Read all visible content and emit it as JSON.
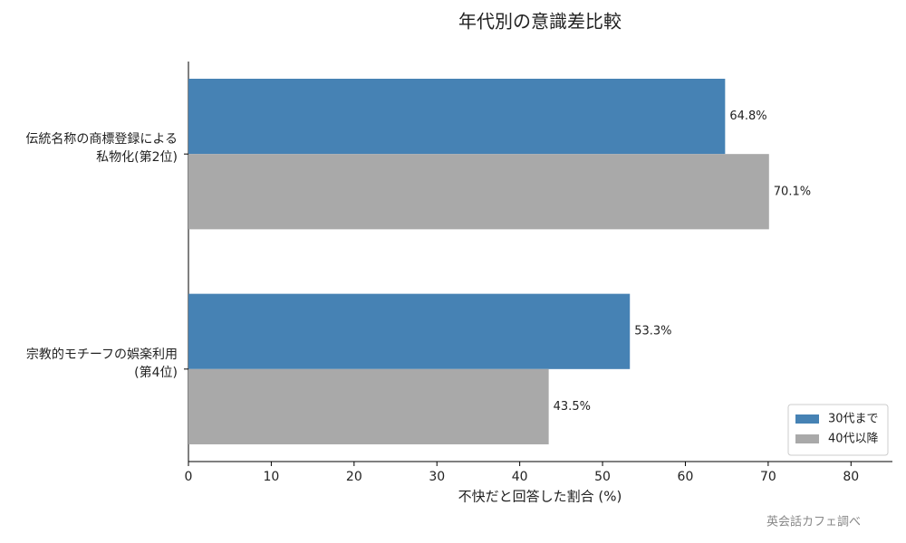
{
  "chart_data": {
    "type": "barh",
    "title": "年代別の意識差比較",
    "categories": [
      [
        "伝統名称の商標登録による",
        "私物化(第2位)"
      ],
      [
        "宗教的モチーフの娯楽利用",
        "(第4位)"
      ]
    ],
    "series": [
      {
        "name": "30代まで",
        "color": "#4682b4",
        "values": [
          64.8,
          53.3
        ],
        "value_labels": [
          "64.8%",
          "53.3%"
        ]
      },
      {
        "name": "40代以降",
        "color": "#a9a9a9",
        "values": [
          70.1,
          43.5
        ],
        "value_labels": [
          "70.1%",
          "43.5%"
        ]
      }
    ],
    "xlabel": "不快だと回答した割合 (%)",
    "xlim": [
      0,
      85
    ],
    "xticks": [
      0,
      10,
      20,
      30,
      40,
      50,
      60,
      70,
      80
    ],
    "legend": "lower right",
    "source": "英会話カフェ調べ"
  }
}
